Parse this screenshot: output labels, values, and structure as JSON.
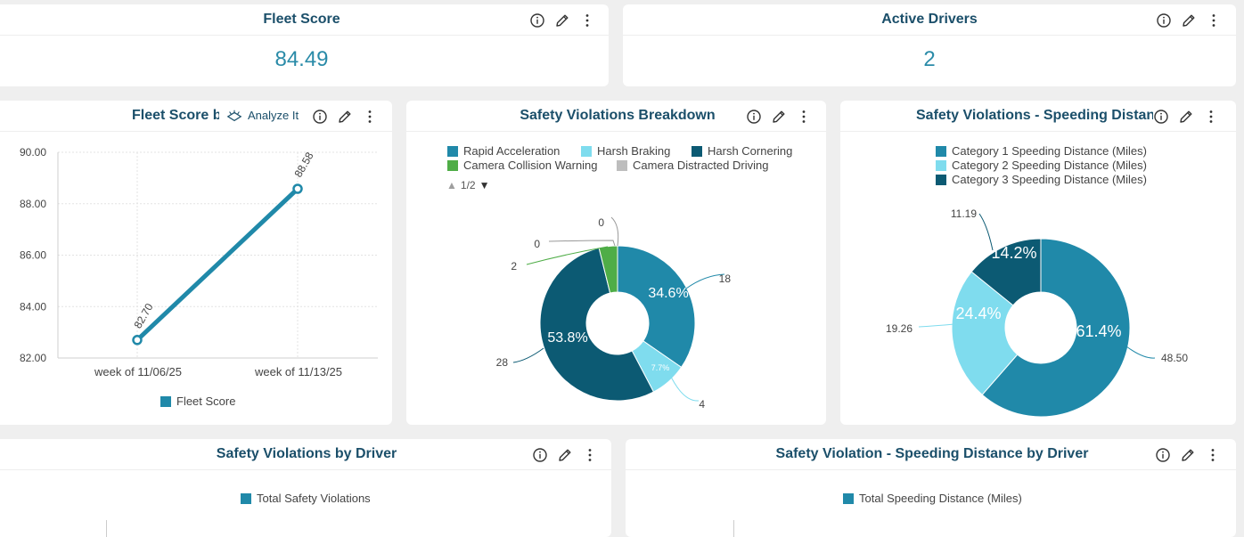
{
  "colors": {
    "teal": "#2089a9",
    "light": "#7fdcee",
    "dark": "#0c5a73",
    "green": "#4fad47",
    "grey": "#bdbdbd",
    "title": "#1b4f6a"
  },
  "fleet_score_card": {
    "title": "Fleet Score",
    "value": "84.49"
  },
  "active_drivers_card": {
    "title": "Active Drivers",
    "value": "2"
  },
  "fleet_score_trend": {
    "title": "Fleet Score b",
    "analyze_label": "Analyze It",
    "legend": "Fleet Score"
  },
  "breakdown": {
    "title": "Safety Violations Breakdown",
    "legend": [
      "Rapid Acceleration",
      "Harsh Braking",
      "Harsh Cornering",
      "Camera Collision Warning",
      "Camera Distracted Driving"
    ],
    "pager": "1/2"
  },
  "speeding": {
    "title": "Safety Violations - Speeding Distance",
    "legend": [
      "Category 1 Speeding Distance (Miles)",
      "Category 2 Speeding Distance (Miles)",
      "Category 3 Speeding Distance (Miles)"
    ]
  },
  "by_driver": {
    "title": "Safety Violations by Driver",
    "legend": "Total Safety Violations"
  },
  "speeding_by_driver": {
    "title": "Safety Violation - Speeding Distance by Driver",
    "legend": "Total Speeding Distance (Miles)"
  },
  "chart_data": [
    {
      "type": "line",
      "title": "Fleet Score b",
      "categories": [
        "week of 11/06/25",
        "week of 11/13/25"
      ],
      "series": [
        {
          "name": "Fleet Score",
          "values": [
            82.7,
            88.58
          ]
        }
      ],
      "data_labels": [
        "82.70",
        "88.58"
      ],
      "y_ticks": [
        "90.00",
        "88.00",
        "86.00",
        "84.00",
        "82.00"
      ],
      "ylim": [
        82,
        90
      ],
      "grid": true,
      "legend": "bottom"
    },
    {
      "type": "pie",
      "title": "Safety Violations Breakdown",
      "slices": [
        {
          "name": "Rapid Acceleration",
          "value": 18,
          "pct": "34.6%"
        },
        {
          "name": "Harsh Braking",
          "value": 4,
          "pct": "7.7%"
        },
        {
          "name": "Harsh Cornering",
          "value": 28,
          "pct": "53.8%"
        },
        {
          "name": "Camera Collision Warning",
          "value": 2,
          "pct": ""
        },
        {
          "name": "Camera Distracted Driving",
          "value": 0,
          "pct": ""
        },
        {
          "name": "",
          "value": 0,
          "pct": ""
        }
      ],
      "legend": "top"
    },
    {
      "type": "pie",
      "title": "Safety Violations - Speeding Distance",
      "slices": [
        {
          "name": "Category 1 Speeding Distance (Miles)",
          "value": 48.5,
          "label": "48.50",
          "pct": "61.4%"
        },
        {
          "name": "Category 2 Speeding Distance (Miles)",
          "value": 19.26,
          "label": "19.26",
          "pct": "24.4%"
        },
        {
          "name": "Category 3 Speeding Distance (Miles)",
          "value": 11.19,
          "label": "11.19",
          "pct": "14.2%"
        }
      ],
      "legend": "top"
    }
  ]
}
